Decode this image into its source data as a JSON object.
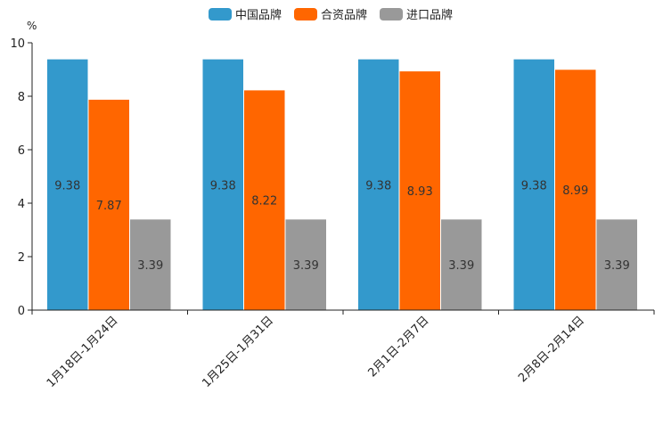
{
  "chart_data": {
    "type": "bar",
    "title": "",
    "unit": "%",
    "xlabel": "",
    "ylabel": "",
    "ylim": [
      0,
      10
    ],
    "yticks": [
      0,
      2,
      4,
      6,
      8,
      10
    ],
    "categories": [
      "1月18日-1月24日",
      "1月25日-1月31日",
      "2月1日-2月7日",
      "2月8日-2月14日"
    ],
    "series": [
      {
        "name": "中国品牌",
        "color": "#3399cc",
        "values": [
          9.38,
          9.38,
          9.38,
          9.38
        ]
      },
      {
        "name": "合资品牌",
        "color": "#ff6600",
        "values": [
          7.87,
          8.22,
          8.93,
          8.99
        ]
      },
      {
        "name": "进口品牌",
        "color": "#999999",
        "values": [
          3.39,
          3.39,
          3.39,
          3.39
        ]
      }
    ],
    "legend_position": "top-center",
    "grid": false
  }
}
